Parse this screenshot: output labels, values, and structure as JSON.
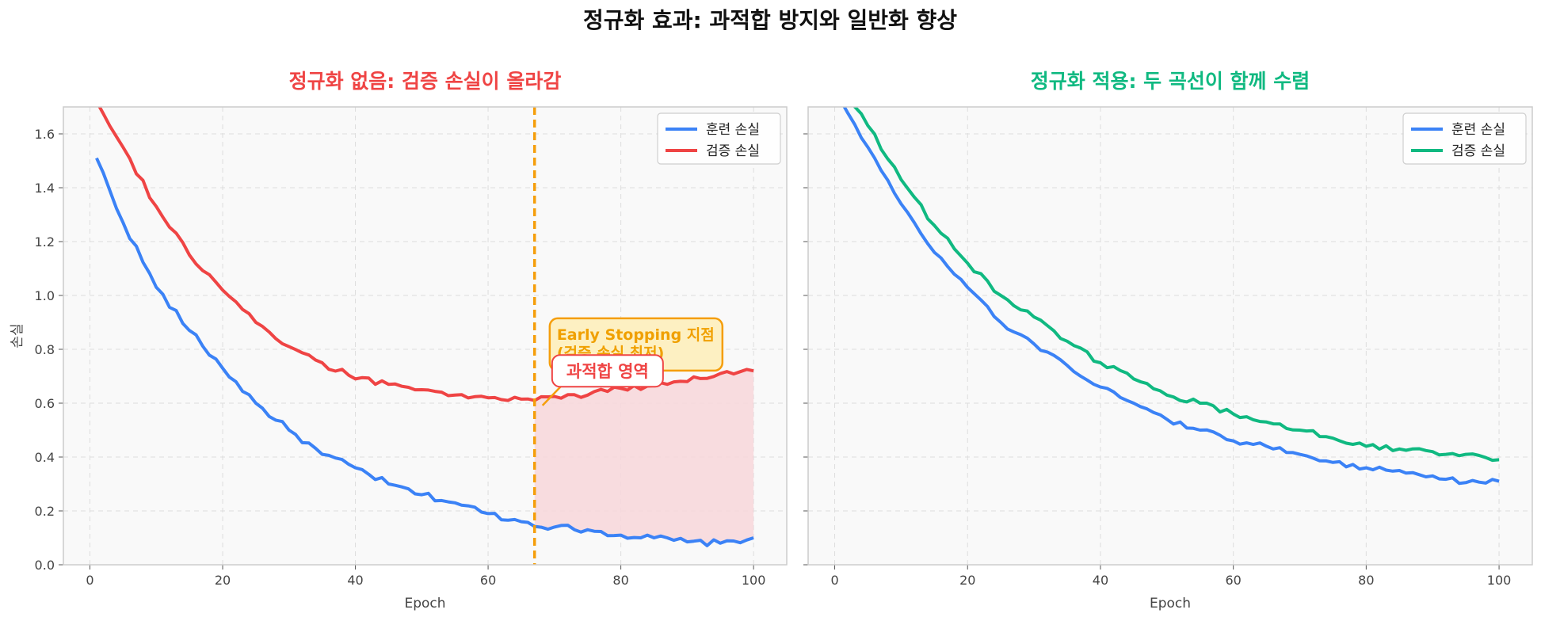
{
  "figure": {
    "title": "정규화 효과: 과적합 방지와 일반화 향상"
  },
  "colors": {
    "train": "#3b82f6",
    "val_overfit": "#ef4444",
    "val_reg": "#10b981",
    "early_stop": "#f59e0b",
    "overfit_fill": "#f8d7da",
    "panel_bg": "#f9f9f9"
  },
  "chart_data": [
    {
      "type": "line",
      "title": "정규화 없음: 검증 손실이 올라감",
      "xlabel": "Epoch",
      "ylabel": "손실",
      "xlim": [
        -4,
        105
      ],
      "ylim": [
        0,
        1.7
      ],
      "xticks": [
        0,
        20,
        40,
        60,
        80,
        100
      ],
      "yticks": [
        "0.0",
        "0.2",
        "0.4",
        "0.6",
        "0.8",
        "1.0",
        "1.2",
        "1.4",
        "1.6"
      ],
      "grid": true,
      "legend_position": "top-right",
      "series": [
        {
          "name": "훈련 손실",
          "color_key": "train",
          "anchors": [
            [
              1,
              1.51
            ],
            [
              5,
              1.27
            ],
            [
              10,
              1.03
            ],
            [
              15,
              0.87
            ],
            [
              20,
              0.73
            ],
            [
              25,
              0.6
            ],
            [
              30,
              0.5
            ],
            [
              35,
              0.41
            ],
            [
              40,
              0.36
            ],
            [
              45,
              0.3
            ],
            [
              50,
              0.26
            ],
            [
              55,
              0.23
            ],
            [
              60,
              0.19
            ],
            [
              65,
              0.16
            ],
            [
              70,
              0.14
            ],
            [
              75,
              0.13
            ],
            [
              80,
              0.11
            ],
            [
              85,
              0.1
            ],
            [
              90,
              0.085
            ],
            [
              95,
              0.08
            ],
            [
              100,
              0.1
            ]
          ],
          "noise": 0.012
        },
        {
          "name": "검증 손실",
          "color_key": "val_overfit",
          "anchors": [
            [
              1,
              1.72
            ],
            [
              5,
              1.55
            ],
            [
              10,
              1.33
            ],
            [
              15,
              1.15
            ],
            [
              20,
              1.02
            ],
            [
              25,
              0.9
            ],
            [
              30,
              0.81
            ],
            [
              35,
              0.75
            ],
            [
              40,
              0.69
            ],
            [
              45,
              0.67
            ],
            [
              50,
              0.65
            ],
            [
              55,
              0.63
            ],
            [
              60,
              0.62
            ],
            [
              65,
              0.615
            ],
            [
              67,
              0.61
            ],
            [
              70,
              0.625
            ],
            [
              75,
              0.63
            ],
            [
              80,
              0.655
            ],
            [
              85,
              0.665
            ],
            [
              90,
              0.68
            ],
            [
              95,
              0.71
            ],
            [
              100,
              0.72
            ]
          ],
          "noise": 0.012
        }
      ],
      "early_stopping": {
        "epoch": 67,
        "label_line1": "Early Stopping 지점",
        "label_line2": "(검증 손실 최저)",
        "label_at": [
          70,
          0.815
        ]
      },
      "overfit_region": {
        "from": 67,
        "to": 100,
        "label": "과적합 영역",
        "label_at": [
          78,
          0.72
        ]
      }
    },
    {
      "type": "line",
      "title": "정규화 적용: 두 곡선이 함께 수렴",
      "xlabel": "Epoch",
      "ylabel": "",
      "xlim": [
        -4,
        105
      ],
      "ylim": [
        0,
        1.7
      ],
      "xticks": [
        0,
        20,
        40,
        60,
        80,
        100
      ],
      "grid": true,
      "legend_position": "top-right",
      "series": [
        {
          "name": "훈련 손실",
          "color_key": "train",
          "anchors": [
            [
              1,
              1.72
            ],
            [
              5,
              1.55
            ],
            [
              10,
              1.34
            ],
            [
              15,
              1.16
            ],
            [
              20,
              1.03
            ],
            [
              25,
              0.9
            ],
            [
              30,
              0.82
            ],
            [
              35,
              0.74
            ],
            [
              40,
              0.66
            ],
            [
              45,
              0.6
            ],
            [
              50,
              0.54
            ],
            [
              55,
              0.5
            ],
            [
              60,
              0.46
            ],
            [
              65,
              0.44
            ],
            [
              70,
              0.41
            ],
            [
              75,
              0.38
            ],
            [
              80,
              0.36
            ],
            [
              85,
              0.35
            ],
            [
              90,
              0.33
            ],
            [
              95,
              0.305
            ],
            [
              100,
              0.31
            ]
          ],
          "noise": 0.01
        },
        {
          "name": "검증 손실",
          "color_key": "val_reg",
          "anchors": [
            [
              1,
              1.78
            ],
            [
              5,
              1.63
            ],
            [
              10,
              1.43
            ],
            [
              15,
              1.26
            ],
            [
              20,
              1.12
            ],
            [
              25,
              1.0
            ],
            [
              30,
              0.92
            ],
            [
              35,
              0.83
            ],
            [
              40,
              0.75
            ],
            [
              45,
              0.69
            ],
            [
              50,
              0.63
            ],
            [
              55,
              0.6
            ],
            [
              60,
              0.56
            ],
            [
              65,
              0.53
            ],
            [
              70,
              0.5
            ],
            [
              75,
              0.47
            ],
            [
              80,
              0.44
            ],
            [
              85,
              0.43
            ],
            [
              90,
              0.42
            ],
            [
              95,
              0.41
            ],
            [
              100,
              0.39
            ]
          ],
          "noise": 0.01
        }
      ]
    }
  ]
}
